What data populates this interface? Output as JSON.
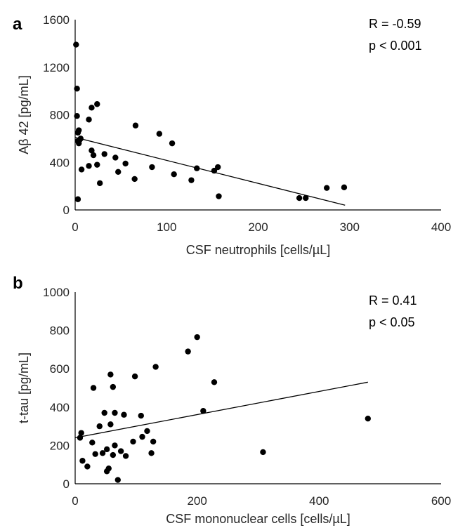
{
  "chart_data": [
    {
      "type": "scatter",
      "panel": "a",
      "xlabel": "CSF neutrophils [cells/µL]",
      "ylabel": "Aβ 42 [pg/mL]",
      "xlim": [
        0,
        400
      ],
      "ylim": [
        0,
        1600
      ],
      "xticks": [
        0,
        100,
        200,
        300,
        400
      ],
      "yticks": [
        0,
        400,
        800,
        1200,
        1600
      ],
      "annotations": [
        "R = -0.59",
        "p < 0.001"
      ],
      "trendline": {
        "x": [
          0,
          295
        ],
        "y": [
          610,
          40
        ]
      },
      "series": [
        {
          "points": [
            [
              1,
              1390
            ],
            [
              2,
              1020
            ],
            [
              2,
              790
            ],
            [
              3,
              650
            ],
            [
              4,
              670
            ],
            [
              3,
              580
            ],
            [
              4,
              560
            ],
            [
              5,
              590
            ],
            [
              6,
              600
            ],
            [
              7,
              340
            ],
            [
              3,
              90
            ],
            [
              15,
              760
            ],
            [
              18,
              860
            ],
            [
              24,
              890
            ],
            [
              18,
              500
            ],
            [
              20,
              460
            ],
            [
              24,
              380
            ],
            [
              15,
              370
            ],
            [
              27,
              225
            ],
            [
              32,
              470
            ],
            [
              44,
              440
            ],
            [
              47,
              320
            ],
            [
              55,
              390
            ],
            [
              66,
              710
            ],
            [
              65,
              260
            ],
            [
              84,
              360
            ],
            [
              92,
              640
            ],
            [
              106,
              560
            ],
            [
              108,
              300
            ],
            [
              127,
              250
            ],
            [
              133,
              350
            ],
            [
              152,
              330
            ],
            [
              156,
              360
            ],
            [
              157,
              115
            ],
            [
              245,
              100
            ],
            [
              252,
              100
            ],
            [
              275,
              185
            ],
            [
              294,
              190
            ]
          ]
        }
      ]
    },
    {
      "type": "scatter",
      "panel": "b",
      "xlabel": "CSF mononuclear cells [cells/µL]",
      "ylabel": "t-tau [pg/mL]",
      "xlim": [
        0,
        600
      ],
      "ylim": [
        0,
        1000
      ],
      "xticks": [
        0,
        200,
        400,
        600
      ],
      "yticks": [
        0,
        200,
        400,
        600,
        800,
        1000
      ],
      "annotations": [
        "R = 0.41",
        "p < 0.05"
      ],
      "trendline": {
        "x": [
          0,
          480
        ],
        "y": [
          240,
          530
        ]
      },
      "series": [
        {
          "points": [
            [
              8,
              240
            ],
            [
              10,
              265
            ],
            [
              12,
              120
            ],
            [
              20,
              90
            ],
            [
              28,
              215
            ],
            [
              30,
              500
            ],
            [
              33,
              155
            ],
            [
              40,
              300
            ],
            [
              45,
              160
            ],
            [
              48,
              370
            ],
            [
              52,
              180
            ],
            [
              52,
              65
            ],
            [
              55,
              80
            ],
            [
              58,
              310
            ],
            [
              58,
              570
            ],
            [
              62,
              150
            ],
            [
              62,
              505
            ],
            [
              65,
              200
            ],
            [
              65,
              370
            ],
            [
              70,
              20
            ],
            [
              75,
              170
            ],
            [
              80,
              360
            ],
            [
              83,
              145
            ],
            [
              95,
              220
            ],
            [
              98,
              560
            ],
            [
              108,
              355
            ],
            [
              110,
              245
            ],
            [
              118,
              275
            ],
            [
              125,
              160
            ],
            [
              128,
              220
            ],
            [
              132,
              610
            ],
            [
              185,
              690
            ],
            [
              200,
              765
            ],
            [
              210,
              380
            ],
            [
              228,
              530
            ],
            [
              308,
              165
            ],
            [
              480,
              340
            ]
          ]
        }
      ]
    }
  ]
}
